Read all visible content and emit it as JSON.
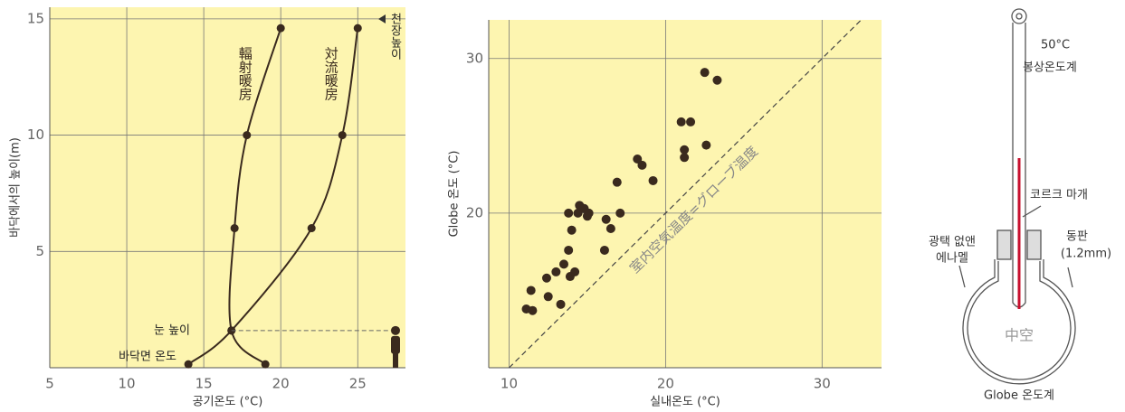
{
  "chart_data": [
    {
      "type": "line",
      "xlabel": "공기온도 (°C)",
      "ylabel": "바닥에서의 높이(m)",
      "xlim": [
        5,
        28.1
      ],
      "ylim": [
        0,
        15.5
      ],
      "xticks": [
        5,
        10,
        15,
        20,
        25
      ],
      "yticks": [
        5,
        10,
        15
      ],
      "grid": true,
      "series": [
        {
          "name": "輻射暖房",
          "color": "#3a2a1e",
          "x": [
            19,
            16.8,
            17,
            17.8,
            20
          ],
          "values": [
            0.15,
            1.6,
            6,
            10,
            14.6
          ]
        },
        {
          "name": "対流暖房",
          "color": "#3a2a1e",
          "x": [
            14,
            16.8,
            22,
            24,
            25
          ],
          "values": [
            0.15,
            1.6,
            6,
            10,
            14.6
          ]
        }
      ],
      "annotations": {
        "ceiling": "천장높이",
        "eye_height": "눈 높이",
        "floor_temperature": "바닥면 온도"
      }
    },
    {
      "type": "scatter",
      "xlabel": "실내온도 (°C)",
      "ylabel": "Globe 온도 (°C)",
      "xlim": [
        8.7,
        33.8
      ],
      "ylim": [
        10,
        32.5
      ],
      "xticks": [
        10,
        20,
        30
      ],
      "yticks": [
        20,
        30
      ],
      "grid": true,
      "color": "#3a2a1e",
      "diagonal_label": "室内空気温度=グローブ温度",
      "x": [
        11.1,
        11.5,
        11.4,
        12.4,
        12.5,
        13.0,
        13.3,
        13.5,
        13.9,
        14.2,
        13.8,
        14.0,
        13.8,
        14.4,
        14.5,
        14.8,
        15.1,
        15.0,
        16.1,
        16.2,
        16.5,
        17.1,
        16.9,
        18.2,
        18.5,
        19.2,
        21.0,
        21.2,
        21.2,
        21.6,
        22.5,
        22.6,
        23.3
      ],
      "values": [
        13.8,
        13.7,
        15.0,
        15.8,
        14.6,
        16.2,
        14.1,
        16.7,
        15.9,
        16.2,
        17.6,
        18.9,
        20.0,
        20.0,
        20.5,
        20.3,
        20.0,
        19.8,
        17.6,
        19.6,
        19.0,
        20.0,
        22.0,
        23.5,
        23.1,
        22.1,
        25.9,
        24.1,
        23.6,
        25.9,
        29.1,
        24.4,
        28.6
      ]
    }
  ],
  "thermometer": {
    "scale_mark": "50°C",
    "stem": "봉상온도계",
    "cork": "코르크 마개",
    "enamel": [
      "광택 없앤",
      "에나멜"
    ],
    "copper": [
      "동판",
      "(1.2mm)"
    ],
    "hollow": "中空",
    "caption": "Globe 온도계"
  }
}
